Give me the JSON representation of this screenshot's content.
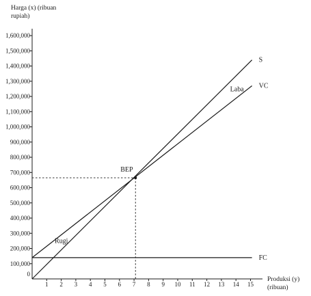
{
  "chart_data": {
    "type": "line",
    "ylabel_lines": [
      "Harga (x) (ribuan",
      "rupiah)"
    ],
    "xlabel_lines": [
      "Produksi  (y)",
      "(ribuan)"
    ],
    "x_ticks": [
      "1",
      "2",
      "3",
      "4",
      "5",
      "6",
      "7",
      "8",
      "9",
      "10",
      "11",
      "12",
      "13",
      "14",
      "15"
    ],
    "y_ticks": [
      "0",
      "100,000",
      "200,000",
      "300,000",
      "400,000",
      "500,000",
      "600,000",
      "700,000",
      "800,000",
      "900,000",
      "1,000,000",
      "1,100,000",
      "1,200,000",
      "1,300,000",
      "1,400,000",
      "1,500,000",
      "1,600,000"
    ],
    "xlim": [
      0,
      15.5
    ],
    "ylim": [
      0,
      1650000
    ],
    "series": [
      {
        "name": "S",
        "points": [
          [
            0,
            0
          ],
          [
            15.1,
            1440000
          ]
        ]
      },
      {
        "name": "VC",
        "points": [
          [
            0,
            140000
          ],
          [
            15.1,
            1270000
          ]
        ]
      },
      {
        "name": "FC",
        "points": [
          [
            0,
            140000
          ],
          [
            15.1,
            140000
          ]
        ]
      }
    ],
    "bep": {
      "label": "BEP",
      "x": 7.1,
      "y": 665000
    },
    "annotations": [
      {
        "text": "Laba",
        "x": 13.6,
        "y": 1235000
      },
      {
        "text": "Rugi",
        "x": 1.55,
        "y": 235000
      }
    ]
  }
}
